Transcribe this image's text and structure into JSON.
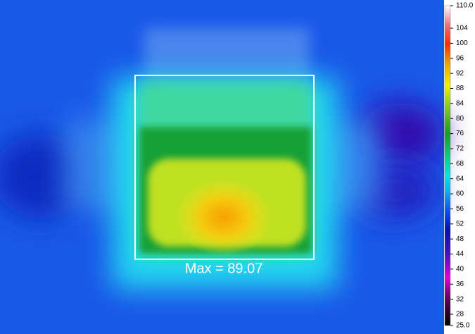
{
  "annotation": "Max = 89.07",
  "colorbar": {
    "lim": [
      25,
      110
    ],
    "ticks": [
      {
        "value": 110,
        "label": "110.0"
      },
      104,
      100,
      96,
      92,
      88,
      84,
      80,
      76,
      72,
      68,
      64,
      60,
      56,
      52,
      48,
      44,
      40,
      36,
      32,
      28,
      {
        "value": 25,
        "label": "25.0"
      }
    ]
  }
}
